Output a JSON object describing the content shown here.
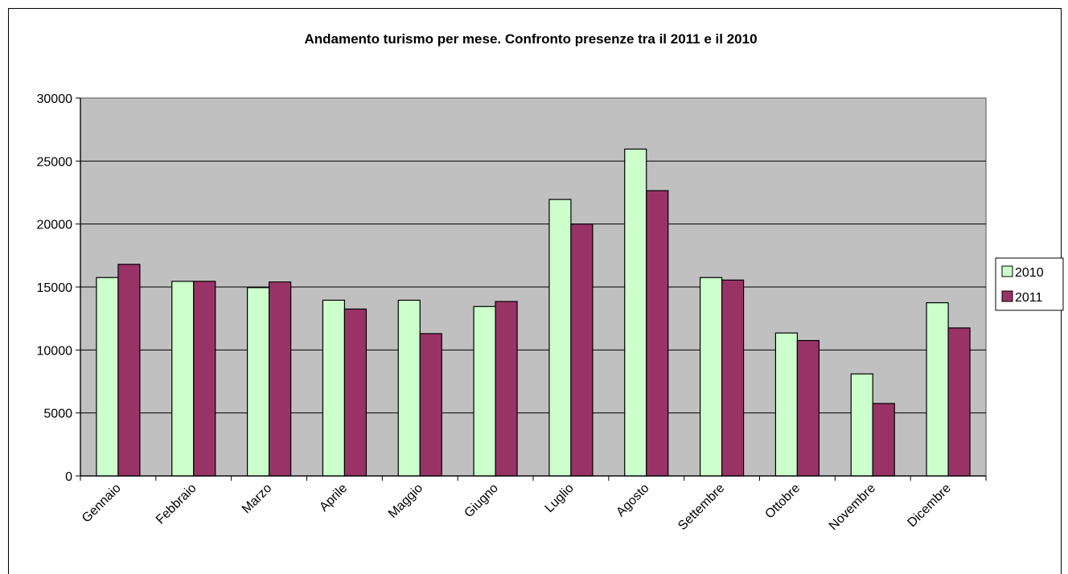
{
  "chart_data": {
    "type": "bar",
    "title": "Andamento turismo per mese. Confronto presenze tra il 2011 e il 2010",
    "categories": [
      "Gennaio",
      "Febbraio",
      "Marzo",
      "Aprile",
      "Maggio",
      "Giugno",
      "Luglio",
      "Agosto",
      "Settembre",
      "Ottobre",
      "Novembre",
      "Dicembre"
    ],
    "series": [
      {
        "name": "2010",
        "color": "#ccffcc",
        "values": [
          15750,
          15450,
          14950,
          13950,
          13950,
          13450,
          21950,
          25950,
          15750,
          11350,
          8100,
          13750
        ]
      },
      {
        "name": "2011",
        "color": "#993366",
        "values": [
          16800,
          15450,
          15400,
          13250,
          11300,
          13850,
          20000,
          22650,
          15550,
          10750,
          5750,
          11750
        ]
      }
    ],
    "ylim": [
      0,
      30000
    ],
    "yticks": [
      0,
      5000,
      10000,
      15000,
      20000,
      25000,
      30000
    ],
    "xlabel": "",
    "ylabel": "",
    "grid": true,
    "plot_background": "#c0c0c0",
    "legend_position": "right"
  }
}
